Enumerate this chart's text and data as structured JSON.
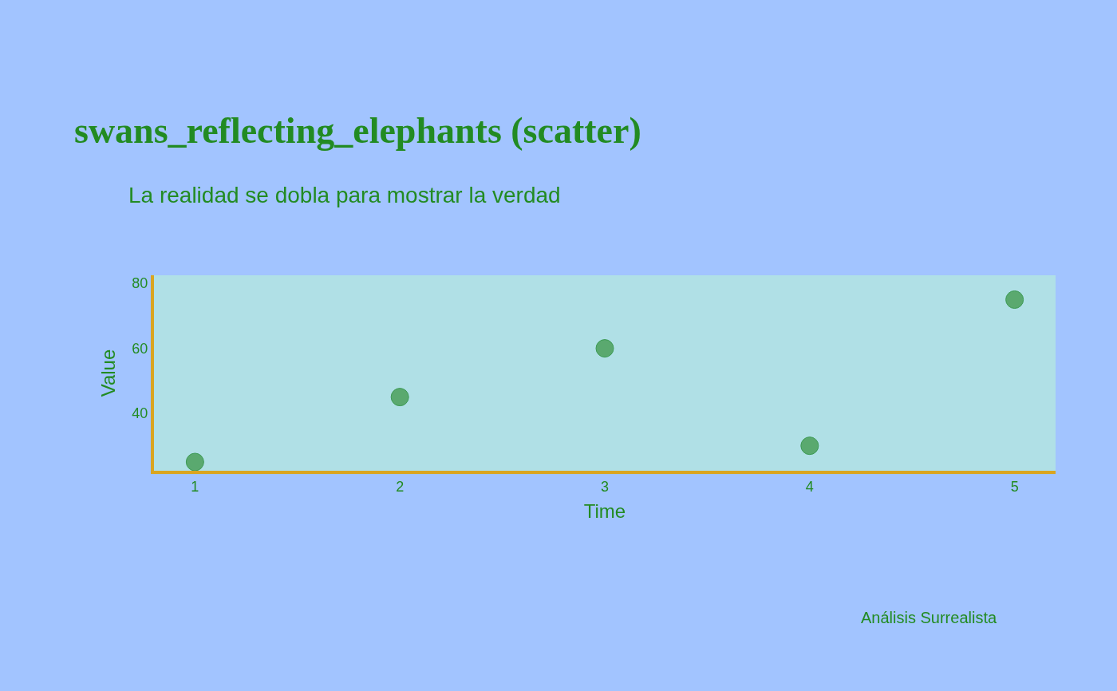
{
  "chart_data": {
    "type": "scatter",
    "title": "swans_reflecting_elephants (scatter)",
    "subtitle": "La realidad se dobla para mostrar la verdad",
    "xlabel": "Time",
    "ylabel": "Value",
    "x": [
      1,
      2,
      3,
      4,
      5
    ],
    "series": [
      {
        "color": "#5aa96f",
        "values": [
          25,
          45,
          60,
          30,
          75
        ]
      }
    ],
    "xlim": [
      0.8,
      5.2
    ],
    "xticks": [
      1,
      2,
      3,
      4,
      5
    ],
    "ylim": [
      22.3,
      82.5
    ],
    "yticks": [
      40,
      60,
      80
    ],
    "marker": "circle",
    "grid": false,
    "legend": false,
    "annotations": [
      "Análisis Surrealista"
    ]
  }
}
